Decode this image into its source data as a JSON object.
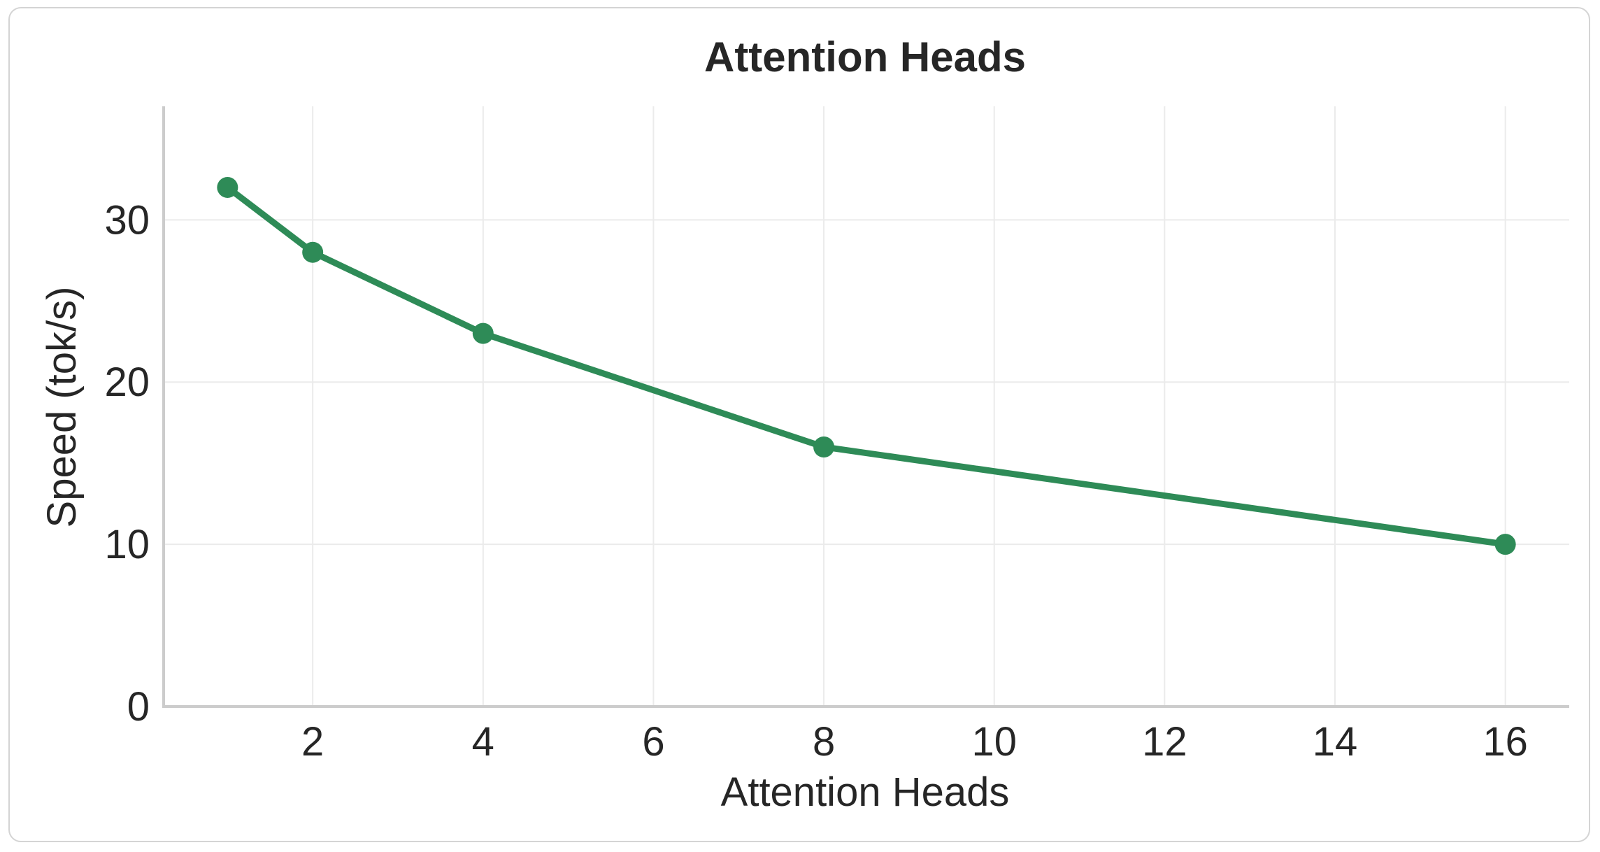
{
  "chart_data": {
    "type": "line",
    "title": "Attention Heads",
    "xlabel": "Attention Heads",
    "ylabel": "Speed (tok/s)",
    "x": [
      1,
      2,
      4,
      8,
      16
    ],
    "series": [
      {
        "values": [
          32,
          28,
          23,
          16,
          10
        ],
        "color": "#2e8b57"
      }
    ],
    "xticks": [
      2,
      4,
      6,
      8,
      10,
      12,
      14,
      16
    ],
    "yticks": [
      0,
      10,
      20,
      30
    ],
    "xlim": [
      0.25,
      16.75
    ],
    "ylim": [
      0,
      37
    ],
    "grid": true
  }
}
